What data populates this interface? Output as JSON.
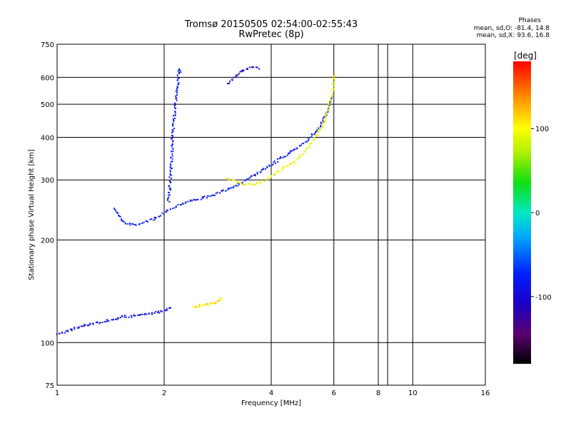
{
  "header": {
    "title": "Tromsø 20150505 02:54:00-02:55:43",
    "subtitle": "RwPretec (8p)"
  },
  "stats": {
    "heading": "Phases",
    "line_o": "mean, sd,O: -81.4, 14.8",
    "line_x": "mean, sd,X:  93.6, 16.8"
  },
  "chart_data": {
    "type": "scatter",
    "xlabel": "Frequency [MHz]",
    "ylabel": "Stationary phase Virtual Height [km]",
    "xscale": "log",
    "yscale": "log",
    "xlim": [
      1,
      16
    ],
    "ylim": [
      75,
      750
    ],
    "xticks": [
      1,
      2,
      4,
      6,
      8,
      10,
      16
    ],
    "yticks": [
      75,
      100,
      200,
      300,
      400,
      500,
      600,
      750
    ],
    "grid": true,
    "colorbar": {
      "label": "[deg]",
      "range": [
        -180,
        180
      ],
      "ticks": [
        100,
        0,
        -100
      ]
    },
    "series": [
      {
        "phase_group": "O-mode trace (blue)",
        "phase": -80,
        "x": [
          1.45,
          1.47,
          1.5,
          1.53,
          1.56,
          1.6,
          1.65,
          1.7,
          1.75,
          1.8,
          1.85,
          1.9,
          1.95,
          2.0,
          2.05,
          2.1,
          2.2,
          2.3,
          2.45,
          2.6,
          2.8,
          3.0,
          3.2,
          3.4,
          3.6,
          3.8,
          4.0,
          4.3,
          4.6,
          5.0,
          5.4,
          5.7,
          5.9
        ],
        "y": [
          250,
          240,
          232,
          227,
          224,
          223,
          223,
          224,
          226,
          229,
          231,
          234,
          238,
          242,
          246,
          250,
          255,
          260,
          264,
          268,
          274,
          283,
          292,
          302,
          313,
          324,
          336,
          352,
          368,
          392,
          425,
          470,
          540
        ]
      },
      {
        "phase_group": "X-mode trace (yellow)",
        "phase": 95,
        "x": [
          3.0,
          3.2,
          3.4,
          3.6,
          3.8,
          4.0,
          4.3,
          4.6,
          5.0,
          5.3,
          5.6,
          5.8,
          5.95,
          6.0
        ],
        "y": [
          305,
          296,
          292,
          294,
          300,
          310,
          325,
          340,
          368,
          400,
          445,
          500,
          560,
          620
        ]
      },
      {
        "phase_group": "E-layer trace (blue)",
        "phase": -90,
        "x": [
          1.0,
          1.05,
          1.1,
          1.15,
          1.2,
          1.25,
          1.3,
          1.35,
          1.4,
          1.45,
          1.5,
          1.55,
          1.6,
          1.7,
          1.8,
          1.9,
          2.0,
          2.05,
          2.1
        ],
        "y": [
          106,
          108,
          110,
          112,
          113,
          114,
          115,
          116,
          117,
          118,
          119,
          120,
          120,
          121,
          122,
          123,
          125,
          127,
          128
        ]
      },
      {
        "phase_group": "Es trace (orange)",
        "phase": 110,
        "x": [
          2.4,
          2.45,
          2.5,
          2.55,
          2.6,
          2.65,
          2.7,
          2.75,
          2.8,
          2.85,
          2.9
        ],
        "y": [
          128,
          128,
          129,
          129,
          130,
          130,
          131,
          131,
          132,
          134,
          137
        ]
      },
      {
        "phase_group": "Spread F near 2 MHz (blue)",
        "phase": -85,
        "x": [
          2.05,
          2.07,
          2.09,
          2.1,
          2.12,
          2.14,
          2.16,
          2.18,
          2.2,
          2.22
        ],
        "y": [
          260,
          300,
          350,
          400,
          450,
          500,
          550,
          600,
          640,
          620
        ]
      },
      {
        "phase_group": "Upper F trace (blue/purple)",
        "phase": -110,
        "x": [
          3.0,
          3.1,
          3.2,
          3.3,
          3.4,
          3.5,
          3.6,
          3.7
        ],
        "y": [
          575,
          595,
          615,
          630,
          640,
          645,
          645,
          640
        ]
      }
    ]
  }
}
